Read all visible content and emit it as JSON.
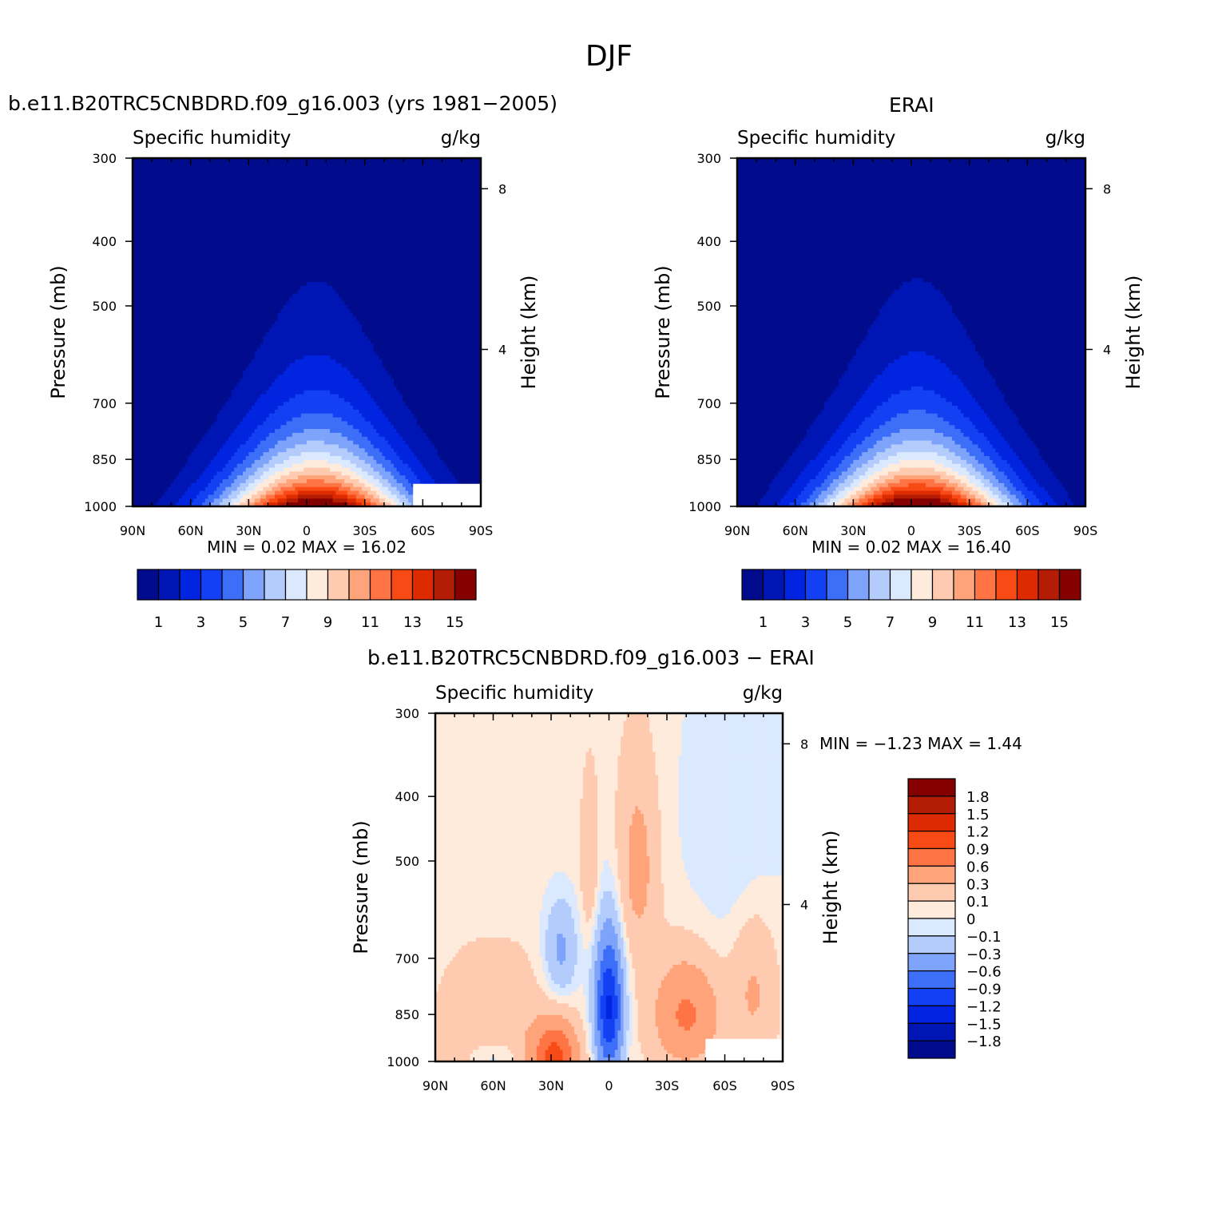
{
  "figure": {
    "title": "DJF"
  },
  "colors": {
    "absolute_levels": [
      "#000c8c",
      "#0016b4",
      "#0024e0",
      "#1240f2",
      "#3d6ef7",
      "#7ea3fa",
      "#b4ccfc",
      "#dbe9ff",
      "#ffebdc",
      "#ffcbb0",
      "#ffa47a",
      "#ff7444",
      "#f84a14",
      "#de2a00",
      "#b41d05",
      "#850000"
    ],
    "diff_levels": [
      "#000c8c",
      "#0016b4",
      "#0024e0",
      "#1240f2",
      "#3d6ef7",
      "#7ea3fa",
      "#b4ccfc",
      "#dbe9ff",
      "#ffebdc",
      "#ffcbb0",
      "#ffa47a",
      "#ff7444",
      "#f84a14",
      "#de2a00",
      "#b41d05",
      "#850000"
    ]
  },
  "panels": {
    "model": {
      "label": "b.e11.B20TRC5CNBDRD.f09_g16.003 (yrs 1981−2005)",
      "stats": "MIN =   0.02   MAX =   16.02"
    },
    "obs": {
      "label": "ERAI",
      "stats": "MIN =   0.02   MAX =   16.40"
    },
    "diff": {
      "label": "b.e11.B20TRC5CNBDRD.f09_g16.003 − ERAI",
      "stats": "MIN =   −1.23   MAX =    1.44"
    }
  },
  "chart_data": [
    {
      "id": "model",
      "type": "heatmap",
      "title": "Specific humidity",
      "units": "g/kg",
      "xlabel": "",
      "ylabel": "Pressure (mb)",
      "y2label": "Height (km)",
      "x_ticks": [
        "90N",
        "60N",
        "30N",
        "0",
        "30S",
        "60S",
        "90S"
      ],
      "x_tick_values": [
        90,
        60,
        30,
        0,
        -30,
        -60,
        -90
      ],
      "xlim": [
        90,
        -90
      ],
      "y_ticks": [
        "300",
        "400",
        "500",
        "700",
        "850",
        "1000"
      ],
      "y_tick_values": [
        300,
        400,
        500,
        700,
        850,
        1000
      ],
      "ylim": [
        1000,
        300
      ],
      "y2_ticks": [
        "8",
        "4"
      ],
      "y2_tick_values": [
        8,
        4
      ],
      "contour_levels": [
        1,
        2,
        3,
        4,
        5,
        6,
        7,
        8,
        9,
        10,
        11,
        12,
        13,
        14,
        15
      ],
      "colorbar_labels": [
        "1",
        "3",
        "5",
        "7",
        "9",
        "11",
        "13",
        "15"
      ],
      "max_value": 16.02,
      "min_value": 0.02,
      "peak_lat": -5,
      "masked_region": {
        "lat_from": -55,
        "lat_to": -90,
        "p_from": 925,
        "p_to": 1000
      }
    },
    {
      "id": "obs",
      "type": "heatmap",
      "title": "Specific humidity",
      "units": "g/kg",
      "xlabel": "",
      "ylabel": "Pressure (mb)",
      "y2label": "Height (km)",
      "x_ticks": [
        "90N",
        "60N",
        "30N",
        "0",
        "30S",
        "60S",
        "90S"
      ],
      "x_tick_values": [
        90,
        60,
        30,
        0,
        -30,
        -60,
        -90
      ],
      "xlim": [
        90,
        -90
      ],
      "y_ticks": [
        "300",
        "400",
        "500",
        "700",
        "850",
        "1000"
      ],
      "y_tick_values": [
        300,
        400,
        500,
        700,
        850,
        1000
      ],
      "ylim": [
        1000,
        300
      ],
      "y2_ticks": [
        "8",
        "4"
      ],
      "y2_tick_values": [
        8,
        4
      ],
      "contour_levels": [
        1,
        2,
        3,
        4,
        5,
        6,
        7,
        8,
        9,
        10,
        11,
        12,
        13,
        14,
        15
      ],
      "colorbar_labels": [
        "1",
        "3",
        "5",
        "7",
        "9",
        "11",
        "13",
        "15"
      ],
      "max_value": 16.4,
      "min_value": 0.02,
      "peak_lat": -3
    },
    {
      "id": "diff",
      "type": "heatmap",
      "title": "Specific humidity",
      "units": "g/kg",
      "xlabel": "",
      "ylabel": "Pressure (mb)",
      "y2label": "Height (km)",
      "x_ticks": [
        "90N",
        "60N",
        "30N",
        "0",
        "30S",
        "60S",
        "90S"
      ],
      "x_tick_values": [
        90,
        60,
        30,
        0,
        -30,
        -60,
        -90
      ],
      "xlim": [
        90,
        -90
      ],
      "y_ticks": [
        "300",
        "400",
        "500",
        "700",
        "850",
        "1000"
      ],
      "y_tick_values": [
        300,
        400,
        500,
        700,
        850,
        1000
      ],
      "ylim": [
        1000,
        300
      ],
      "y2_ticks": [
        "8",
        "4"
      ],
      "y2_tick_values": [
        8,
        4
      ],
      "contour_levels": [
        -1.8,
        -1.5,
        -1.2,
        -0.9,
        -0.6,
        -0.3,
        -0.1,
        0,
        0.1,
        0.3,
        0.6,
        0.9,
        1.2,
        1.5,
        1.8
      ],
      "colorbar_labels": [
        "1.8",
        "1.5",
        "1.2",
        "0.9",
        "0.6",
        "0.3",
        "0.1",
        "0",
        "−0.1",
        "−0.3",
        "−0.6",
        "−0.9",
        "−1.2",
        "−1.5",
        "−1.8"
      ],
      "max_value": 1.44,
      "min_value": -1.23,
      "masked_region": {
        "lat_from": -50,
        "lat_to": -90,
        "p_from": 925,
        "p_to": 1000
      }
    }
  ]
}
